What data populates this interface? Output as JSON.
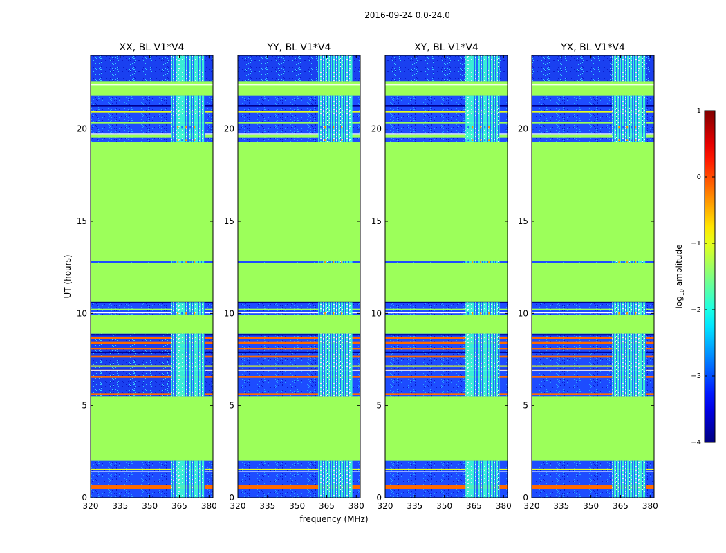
{
  "chart_data": {
    "type": "heatmap",
    "suptitle": "2016-09-24 0.0-24.0",
    "panels": [
      {
        "title": "XX, BL V1*V4"
      },
      {
        "title": "YY, BL V1*V4"
      },
      {
        "title": "XY, BL V1*V4"
      },
      {
        "title": "YX, BL V1*V4"
      }
    ],
    "xlabel": "frequency (MHz)",
    "ylabel": "UT (hours)",
    "xlim": [
      320,
      382
    ],
    "ylim": [
      0,
      24
    ],
    "xticks": [
      320,
      335,
      350,
      365,
      380
    ],
    "yticks": [
      0,
      5,
      10,
      15,
      20
    ],
    "rfi_band_mhz": [
      360,
      379
    ],
    "colorbar": {
      "label_prefix": "log",
      "label_sub": "10",
      "label_suffix": " amplitude",
      "range": [
        -4,
        1
      ],
      "ticks": [
        1,
        0,
        -1,
        -2,
        -3,
        -4
      ],
      "tick_labels": [
        "1",
        "0",
        "−1",
        "−2",
        "−3",
        "−4"
      ],
      "colormap": "jet"
    },
    "flagged_value": -1.3,
    "colors": {
      "flagged": "#9cff5a",
      "noise": "#1d4cff",
      "noise_light": "#2aa0ff",
      "rfi": "#3dffd2",
      "orange": "#ff6a00",
      "dark": "#00008f",
      "yellow": "#e8ff20"
    }
  }
}
